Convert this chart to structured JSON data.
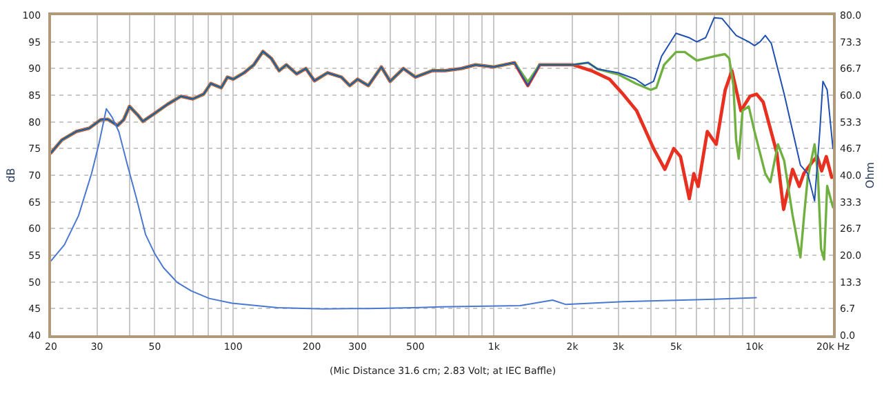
{
  "chart_data": {
    "type": "line",
    "xlabel": null,
    "ylabel": "dB",
    "y2label": "Ohm",
    "log": "x",
    "grid": true,
    "line_style": "solid",
    "marker": "none",
    "xlim": [
      20,
      20000
    ],
    "xticks": [
      20,
      30,
      {
        "value": 40,
        "label": null
      },
      50,
      {
        "value": 60,
        "label": null
      },
      {
        "value": 70,
        "label": null
      },
      {
        "value": 80,
        "label": null
      },
      {
        "value": 90,
        "label": null
      },
      100,
      200,
      300,
      {
        "value": 400,
        "label": null
      },
      500,
      {
        "value": 600,
        "label": null
      },
      {
        "value": 700,
        "label": null
      },
      {
        "value": 800,
        "label": null
      },
      {
        "value": 900,
        "label": null
      },
      {
        "value": 1000,
        "label": "1k"
      },
      {
        "value": 2000,
        "label": "2k"
      },
      {
        "value": 3000,
        "label": "3k"
      },
      {
        "value": 4000,
        "label": null
      },
      {
        "value": 5000,
        "label": "5k"
      },
      {
        "value": 6000,
        "label": null
      },
      {
        "value": 7000,
        "label": null
      },
      {
        "value": 8000,
        "label": null
      },
      {
        "value": 9000,
        "label": null
      },
      {
        "value": 10000,
        "label": "10k"
      },
      {
        "value": 20000,
        "label": "20k Hz"
      }
    ],
    "ylim": [
      40,
      100
    ],
    "yticks": [
      40,
      45,
      50,
      55,
      60,
      65,
      70,
      75,
      80,
      85,
      90,
      95,
      100
    ],
    "y2lim": [
      0,
      80
    ],
    "y2ticks": [
      {
        "value": 0,
        "label": "0.0"
      },
      6.7,
      13.3,
      {
        "value": 20,
        "label": "20.0"
      },
      26.7,
      33.3,
      {
        "value": 40,
        "label": "40.0"
      },
      46.7,
      53.3,
      {
        "value": 60,
        "label": "60.0"
      },
      66.7,
      73.3,
      {
        "value": 80,
        "label": "80.0"
      }
    ],
    "annotations": [
      "(Mic Distance 31.6 cm; 2.83 Volt; at IEC Baffle)"
    ],
    "series": [
      {
        "color": "#e83020",
        "x": [
          20,
          22,
          25,
          28,
          31,
          33,
          36,
          38,
          40,
          43,
          45,
          50,
          56,
          63,
          70,
          77,
          82,
          90,
          95,
          100,
          110,
          120,
          130,
          140,
          150,
          160,
          175,
          190,
          205,
          230,
          260,
          280,
          300,
          330,
          370,
          400,
          450,
          500,
          580,
          650,
          750,
          850,
          1000,
          1200,
          1350,
          1500,
          2016,
          2366,
          2780,
          3130,
          3530,
          4100,
          4530,
          4900,
          5200,
          5620,
          5850,
          6080,
          6590,
          7130,
          7720,
          8190,
          8870,
          9610,
          10190,
          10800,
          12180,
          12930,
          14000,
          14850,
          15450,
          16730,
          17400,
          18100,
          18850,
          19780
        ],
        "values": [
          74.2,
          76.6,
          78.2,
          78.8,
          80.4,
          80.5,
          79.3,
          80.4,
          82.9,
          81.3,
          80.1,
          81.6,
          83.3,
          84.8,
          84.3,
          85.2,
          87.2,
          86.4,
          88.4,
          88.0,
          89.2,
          90.7,
          93.2,
          91.9,
          89.6,
          90.7,
          89.0,
          90.0,
          87.7,
          89.2,
          88.4,
          86.8,
          88.0,
          86.8,
          90.3,
          87.6,
          90.0,
          88.4,
          89.6,
          89.6,
          90.0,
          90.7,
          90.3,
          91.1,
          86.8,
          90.7,
          90.7,
          89.6,
          88.0,
          85.2,
          82.1,
          75.0,
          71.1,
          75.0,
          73.5,
          65.6,
          70.3,
          67.9,
          78.2,
          75.8,
          86.0,
          89.6,
          82.1,
          84.8,
          85.2,
          83.7,
          74.2,
          63.6,
          71.1,
          67.9,
          70.3,
          72.6,
          73.5,
          70.8,
          73.5,
          69.6
        ]
      },
      {
        "color": "#70b040",
        "x": [
          20,
          22,
          25,
          28,
          31,
          33,
          36,
          38,
          40,
          43,
          45,
          50,
          56,
          63,
          70,
          77,
          82,
          90,
          95,
          100,
          110,
          120,
          130,
          140,
          150,
          160,
          175,
          190,
          205,
          230,
          260,
          280,
          300,
          330,
          370,
          400,
          450,
          500,
          580,
          650,
          750,
          850,
          1000,
          1200,
          1350,
          1500,
          2000,
          2300,
          2500,
          3000,
          3500,
          4000,
          4200,
          4500,
          5000,
          5400,
          6000,
          6500,
          7000,
          7700,
          8000,
          8300,
          8500,
          8700,
          9000,
          9500,
          10000,
          11000,
          11500,
          12300,
          13000,
          14000,
          15000,
          15500,
          16000,
          17000,
          17500,
          18000,
          18500,
          19000,
          20000
        ],
        "values": [
          74.2,
          76.6,
          78.2,
          78.8,
          80.4,
          80.5,
          79.3,
          80.4,
          82.9,
          81.3,
          80.1,
          81.6,
          83.3,
          84.8,
          84.3,
          85.2,
          87.2,
          86.4,
          88.4,
          88.0,
          89.2,
          90.7,
          93.2,
          91.9,
          89.6,
          90.7,
          89.0,
          90.0,
          87.7,
          89.2,
          88.4,
          86.8,
          88.0,
          86.8,
          90.3,
          87.6,
          90.0,
          88.4,
          89.6,
          89.6,
          90.0,
          90.7,
          90.3,
          91.1,
          87.5,
          90.7,
          90.7,
          91.1,
          89.9,
          88.9,
          87.2,
          86.0,
          86.4,
          90.7,
          93.1,
          93.1,
          91.5,
          91.9,
          92.3,
          92.7,
          91.9,
          86.8,
          76.6,
          73.1,
          82.1,
          82.9,
          78.2,
          70.3,
          68.7,
          75.8,
          72.7,
          62.5,
          54.6,
          62.5,
          69.5,
          75.8,
          70.3,
          56.2,
          54.2,
          68.0,
          64.0
        ]
      },
      {
        "color": "#1f4fb0",
        "x": [
          20,
          22,
          25,
          28,
          31,
          33,
          36,
          38,
          40,
          43,
          45,
          50,
          56,
          63,
          70,
          77,
          82,
          90,
          95,
          100,
          110,
          120,
          130,
          140,
          150,
          160,
          175,
          190,
          205,
          230,
          260,
          280,
          300,
          330,
          370,
          400,
          450,
          500,
          580,
          650,
          750,
          850,
          1000,
          1200,
          1350,
          1500,
          2000,
          2300,
          2500,
          3000,
          3500,
          3800,
          4100,
          4400,
          5000,
          5600,
          6000,
          6500,
          7000,
          7500,
          8500,
          9500,
          10000,
          10500,
          11000,
          11600,
          13000,
          15000,
          16000,
          17000,
          17800,
          18300,
          19000,
          20000
        ],
        "values": [
          74.2,
          76.6,
          78.2,
          78.8,
          80.4,
          80.5,
          79.3,
          80.4,
          82.9,
          81.3,
          80.1,
          81.6,
          83.3,
          84.8,
          84.3,
          85.2,
          87.2,
          86.4,
          88.4,
          88.0,
          89.2,
          90.7,
          93.2,
          91.9,
          89.6,
          90.7,
          89.0,
          90.0,
          87.7,
          89.2,
          88.4,
          86.8,
          88.0,
          86.8,
          90.3,
          87.6,
          90.0,
          88.4,
          89.6,
          89.6,
          90.0,
          90.7,
          90.3,
          91.1,
          86.8,
          90.7,
          90.7,
          91.1,
          89.9,
          89.2,
          88.0,
          86.8,
          87.6,
          92.3,
          96.6,
          95.8,
          95.0,
          95.8,
          99.5,
          99.4,
          96.2,
          95.0,
          94.3,
          95.0,
          96.2,
          94.7,
          85.2,
          71.9,
          70.3,
          65.2,
          78.2,
          87.6,
          86.0,
          75.0
        ]
      },
      {
        "color": "#4a78d0",
        "axis": "y2",
        "x": [
          20,
          22.5,
          25.5,
          28.6,
          30.5,
          32.6,
          34.3,
          36.4,
          39.3,
          42.6,
          46.1,
          49.9,
          54,
          61,
          69,
          81,
          99,
          148,
          221,
          330,
          494,
          629,
          1260,
          1680,
          1890,
          3130,
          6990,
          10150
        ],
        "values": [
          18.6,
          22.6,
          29.9,
          40.4,
          47.7,
          56.6,
          54.5,
          50.9,
          42.5,
          34.1,
          25.2,
          20.5,
          16.9,
          13.2,
          11.1,
          9.2,
          8.0,
          6.9,
          6.6,
          6.7,
          6.9,
          7.1,
          7.4,
          8.8,
          7.7,
          8.4,
          9.0,
          9.4
        ]
      }
    ]
  }
}
